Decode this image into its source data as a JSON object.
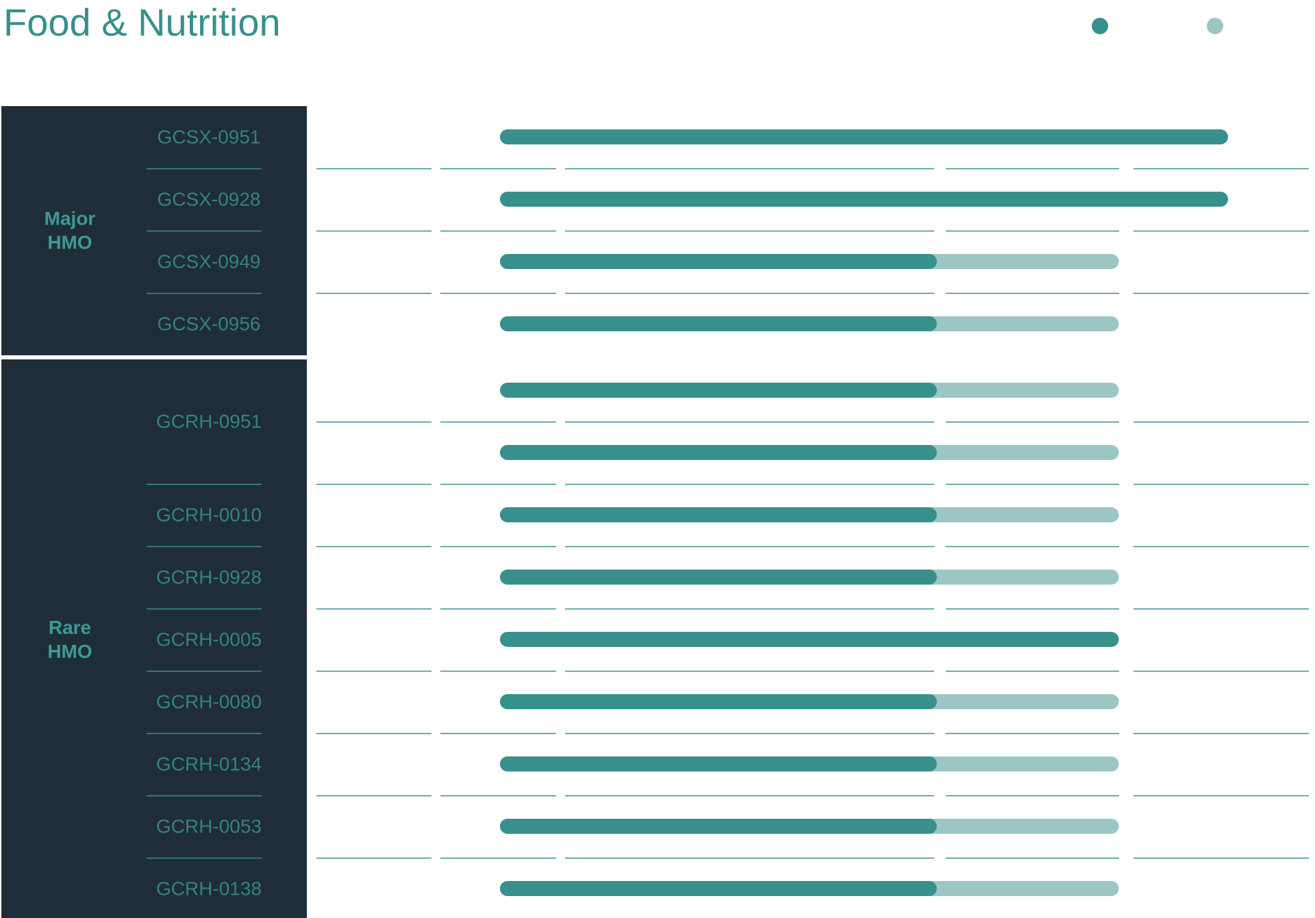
{
  "title": "Food & Nutrition",
  "colors": {
    "panel": "#1f2d39",
    "accent": "#37908b",
    "accent_light": "#9cc6c4",
    "row_label": "#33837e",
    "group_label": "#3c9a95",
    "divider": "#37908b"
  },
  "legend": [
    {
      "label": "",
      "color": "#37908b"
    },
    {
      "label": "",
      "color": "#9cc6c4"
    }
  ],
  "chart_data": {
    "type": "bar",
    "orientation": "horizontal",
    "stacked": true,
    "title": "Food & Nutrition",
    "xlabel": "",
    "ylabel": "",
    "xlim": [
      0,
      100
    ],
    "grid": "horizontal row dividers",
    "legend_position": "top-right",
    "groups": [
      {
        "label": "Major HMO",
        "label_lines": [
          "Major",
          "HMO"
        ],
        "rows": [
          {
            "label": "GCSX-0951",
            "bars": [
              {
                "dark": 100,
                "light": 0
              }
            ]
          },
          {
            "label": "GCSX-0928",
            "bars": [
              {
                "dark": 100,
                "light": 0
              }
            ]
          },
          {
            "label": "GCSX-0949",
            "bars": [
              {
                "dark": 60,
                "light": 25
              }
            ]
          },
          {
            "label": "GCSX-0956",
            "bars": [
              {
                "dark": 60,
                "light": 25
              }
            ]
          }
        ]
      },
      {
        "label": "Rare HMO",
        "label_lines": [
          "Rare",
          "HMO"
        ],
        "rows": [
          {
            "label": "GCRH-0951",
            "bars": [
              {
                "dark": 60,
                "light": 25
              },
              {
                "dark": 60,
                "light": 25
              }
            ]
          },
          {
            "label": "GCRH-0010",
            "bars": [
              {
                "dark": 60,
                "light": 25
              }
            ]
          },
          {
            "label": "GCRH-0928",
            "bars": [
              {
                "dark": 60,
                "light": 25
              }
            ]
          },
          {
            "label": "GCRH-0005",
            "bars": [
              {
                "dark": 85,
                "light": 0
              }
            ]
          },
          {
            "label": "GCRH-0080",
            "bars": [
              {
                "dark": 60,
                "light": 25
              }
            ]
          },
          {
            "label": "GCRH-0134",
            "bars": [
              {
                "dark": 60,
                "light": 25
              }
            ]
          },
          {
            "label": "GCRH-0053",
            "bars": [
              {
                "dark": 60,
                "light": 25
              }
            ]
          },
          {
            "label": "GCRH-0138",
            "bars": [
              {
                "dark": 60,
                "light": 25
              }
            ]
          }
        ]
      }
    ]
  }
}
